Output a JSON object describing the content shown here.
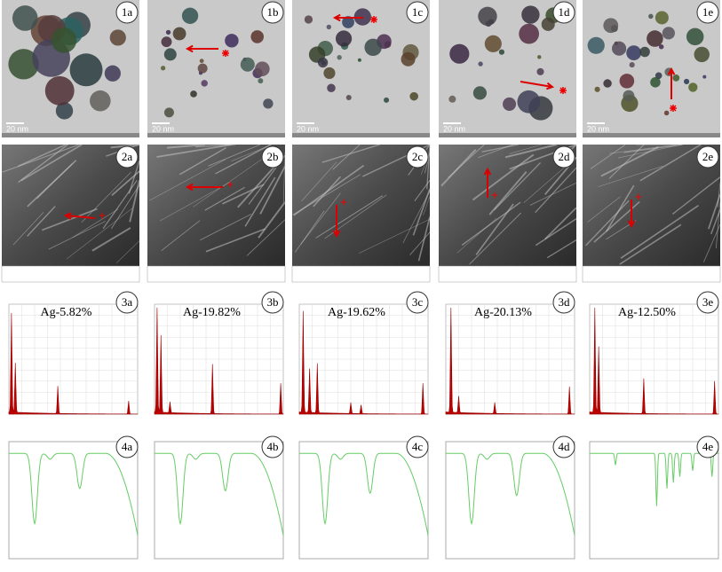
{
  "rows": [
    [
      {
        "label": "1a",
        "scale": "20 nm"
      },
      {
        "label": "1b",
        "scale": "20 nm"
      },
      {
        "label": "1c",
        "scale": "20 nm"
      },
      {
        "label": "1d",
        "scale": "20 nm"
      },
      {
        "label": "1e",
        "scale": "20 nm"
      }
    ],
    [
      {
        "label": "2a"
      },
      {
        "label": "2b"
      },
      {
        "label": "2c"
      },
      {
        "label": "2d"
      },
      {
        "label": "2e"
      }
    ],
    [
      {
        "label": "3a",
        "note": "Ag-5.82%"
      },
      {
        "label": "3b",
        "note": "Ag-19.82%"
      },
      {
        "label": "3c",
        "note": "Ag-19.62%"
      },
      {
        "label": "3d",
        "note": "Ag-20.13%"
      },
      {
        "label": "3e",
        "note": "Ag-12.50%"
      }
    ],
    [
      {
        "label": "4a"
      },
      {
        "label": "4b"
      },
      {
        "label": "4c"
      },
      {
        "label": "4d"
      },
      {
        "label": "4e"
      }
    ]
  ]
}
